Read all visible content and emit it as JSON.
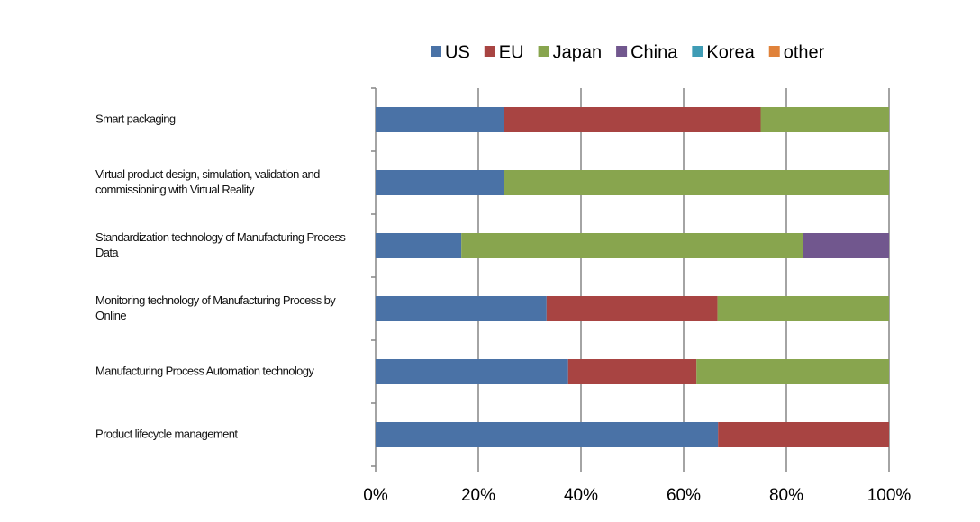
{
  "chart_data": {
    "type": "stacked-barh",
    "categories": [
      "Smart packaging",
      "Virtual product design, simulation, validation and commissioning with Virtual Reality",
      "Standardization technology of Manufacturing Process Data",
      "Monitoring technology of Manufacturing Process by Online",
      "Manufacturing Process Automation technology",
      "Product lifecycle management"
    ],
    "series": [
      {
        "name": "US",
        "color": "#4a72a6",
        "values": [
          25,
          25,
          16.7,
          33.3,
          37.5,
          66.7
        ]
      },
      {
        "name": "EU",
        "color": "#a84442",
        "values": [
          50,
          0,
          0,
          33.3,
          25,
          33.3
        ]
      },
      {
        "name": "Japan",
        "color": "#88a54e",
        "values": [
          25,
          75,
          66.6,
          33.4,
          37.5,
          0
        ]
      },
      {
        "name": "China",
        "color": "#71578e",
        "values": [
          0,
          0,
          16.7,
          0,
          0,
          0
        ]
      },
      {
        "name": "Korea",
        "color": "#3f9cb5",
        "values": [
          0,
          0,
          0,
          0,
          0,
          0
        ]
      },
      {
        "name": "other",
        "color": "#e0823a",
        "values": [
          0,
          0,
          0,
          0,
          0,
          0
        ]
      }
    ],
    "xlim": [
      0,
      100
    ],
    "xticks": [
      {
        "value": 0,
        "label": "0%"
      },
      {
        "value": 20,
        "label": "20%"
      },
      {
        "value": 40,
        "label": "40%"
      },
      {
        "value": 60,
        "label": "60%"
      },
      {
        "value": 80,
        "label": "80%"
      },
      {
        "value": 100,
        "label": "100%"
      }
    ],
    "grid": true,
    "legend": "top"
  }
}
